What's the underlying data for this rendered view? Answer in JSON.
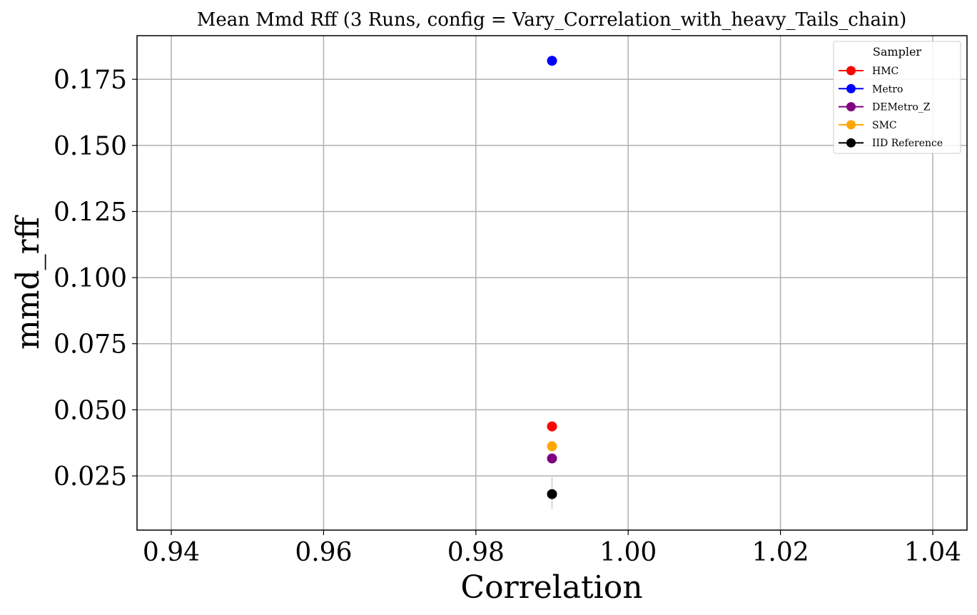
{
  "chart_data": {
    "type": "scatter",
    "title": "Mean Mmd Rff (3 Runs, config = Vary_Correlation_with_heavy_Tails_chain)",
    "xlabel": "Correlation",
    "ylabel": "mmd_rff",
    "xlim": [
      0.9355,
      1.0445
    ],
    "ylim": [
      0.0045,
      0.1915
    ],
    "x_ticks": [
      "0.94",
      "0.96",
      "0.98",
      "1.00",
      "1.02",
      "1.04"
    ],
    "x_tick_values": [
      0.94,
      0.96,
      0.98,
      1.0,
      1.02,
      1.04
    ],
    "y_ticks": [
      "0.025",
      "0.050",
      "0.075",
      "0.100",
      "0.125",
      "0.150",
      "0.175"
    ],
    "y_tick_values": [
      0.025,
      0.05,
      0.075,
      0.1,
      0.125,
      0.15,
      0.175
    ],
    "grid": true,
    "legend": {
      "title": "Sampler",
      "position": "top-right"
    },
    "series": [
      {
        "name": "HMC",
        "color": "#ff0000",
        "x": [
          0.99
        ],
        "y": [
          0.0437
        ]
      },
      {
        "name": "Metro",
        "color": "#0000ff",
        "x": [
          0.99
        ],
        "y": [
          0.182
        ]
      },
      {
        "name": "DEMetro_Z",
        "color": "#800080",
        "x": [
          0.99
        ],
        "y": [
          0.0316
        ]
      },
      {
        "name": "SMC",
        "color": "#ffa500",
        "x": [
          0.99
        ],
        "y": [
          0.0362
        ]
      },
      {
        "name": "IID Reference",
        "color": "#000000",
        "x": [
          0.99
        ],
        "y": [
          0.0181
        ],
        "error_bar": [
          0.0125,
          0.0245
        ]
      }
    ]
  }
}
